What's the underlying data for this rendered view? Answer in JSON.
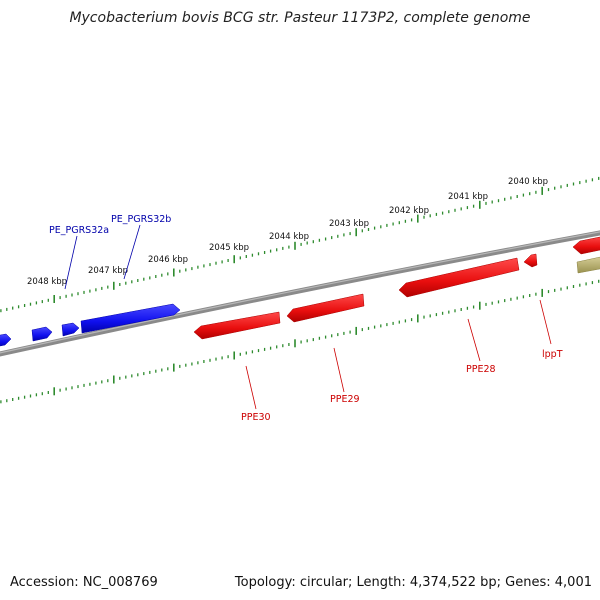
{
  "title": "Mycobacterium bovis BCG str. Pasteur 1173P2, complete genome",
  "footer": {
    "accession": "Accession: NC_008769",
    "stats": "Topology: circular; Length: 4,374,522 bp; Genes: 4,001"
  },
  "scale": {
    "unit": "kbp",
    "ticks": [
      {
        "label": "2040 kbp"
      },
      {
        "label": "2041 kbp"
      },
      {
        "label": "2042 kbp"
      },
      {
        "label": "2043 kbp"
      },
      {
        "label": "2044 kbp"
      },
      {
        "label": "2045 kbp"
      },
      {
        "label": "2046 kbp"
      },
      {
        "label": "2047 kbp"
      },
      {
        "label": "2048 kbp"
      }
    ]
  },
  "colors": {
    "backbone": "#7a7a7a",
    "ticks": "#2e8b2e",
    "forward_gene": "#1010ee",
    "forward_label": "#0000aa",
    "reverse_gene": "#ee1010",
    "reverse_label": "#cc0000",
    "other_feature": "#b8b070"
  },
  "genes": {
    "forward": [
      {
        "name": "PE_PGRS32a"
      },
      {
        "name": "PE_PGRS32b"
      }
    ],
    "reverse": [
      {
        "name": "PPE30"
      },
      {
        "name": "PPE29"
      },
      {
        "name": "PPE28"
      },
      {
        "name": "lppT"
      }
    ]
  }
}
